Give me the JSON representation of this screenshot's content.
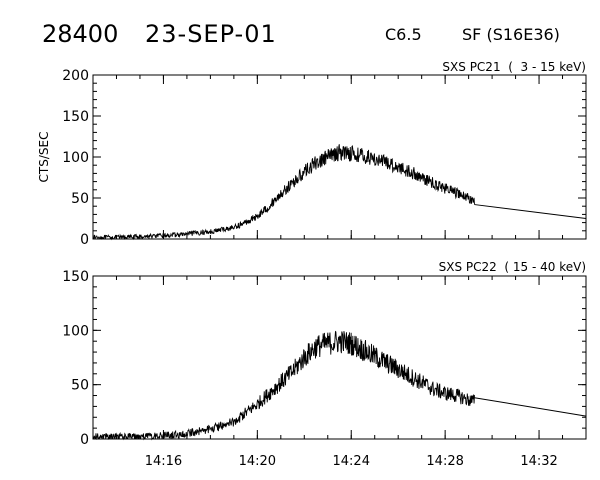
{
  "header": {
    "event_id": "28400",
    "date": "23-SEP-01",
    "flare_class": "C6.5",
    "flare_location": "SF (S16E36)"
  },
  "chart_data": [
    {
      "type": "line",
      "title": "SXS PC21  (  3 - 15 keV)",
      "ylabel": "CTS/SEC",
      "xlim": [
        "14:13",
        "14:34"
      ],
      "ylim": [
        0,
        200
      ],
      "y_ticks": [
        0,
        50,
        100,
        150,
        200
      ],
      "x_ticks": [
        "14:16",
        "14:20",
        "14:24",
        "14:28",
        "14:32"
      ],
      "x_tick_labels_shown": false,
      "x_minor_tick_minutes": 1,
      "grid": false,
      "series": [
        {
          "style": "noisy",
          "x": [
            "14:13:00",
            "14:14:00",
            "14:15:00",
            "14:16:00",
            "14:17:00",
            "14:18:00",
            "14:19:00",
            "14:19:30",
            "14:20:00",
            "14:20:30",
            "14:21:00",
            "14:21:30",
            "14:22:00",
            "14:22:30",
            "14:23:00",
            "14:23:30",
            "14:24:00",
            "14:24:30",
            "14:25:00",
            "14:25:30",
            "14:26:00",
            "14:26:30",
            "14:27:00",
            "14:27:30",
            "14:28:00",
            "14:28:30",
            "14:29:00",
            "14:29:15"
          ],
          "y": [
            2,
            2,
            3,
            4,
            6,
            9,
            14,
            20,
            28,
            40,
            55,
            68,
            82,
            93,
            100,
            106,
            105,
            101,
            98,
            93,
            88,
            82,
            75,
            68,
            62,
            56,
            50,
            46
          ],
          "noise": 7
        },
        {
          "style": "smooth",
          "x": [
            "14:29:15",
            "14:34:00"
          ],
          "y": [
            42,
            25
          ]
        }
      ]
    },
    {
      "type": "line",
      "title": "SXS PC22  ( 15 - 40 keV)",
      "ylabel": "",
      "xlim": [
        "14:13",
        "14:34"
      ],
      "ylim": [
        0,
        150
      ],
      "y_ticks": [
        0,
        50,
        100,
        150
      ],
      "x_ticks": [
        "14:16",
        "14:20",
        "14:24",
        "14:28",
        "14:32"
      ],
      "x_tick_labels_shown": true,
      "x_minor_tick_minutes": 1,
      "grid": false,
      "series": [
        {
          "style": "noisy",
          "x": [
            "14:13:00",
            "14:14:00",
            "14:15:00",
            "14:16:00",
            "14:17:00",
            "14:18:00",
            "14:19:00",
            "14:19:30",
            "14:20:00",
            "14:20:30",
            "14:21:00",
            "14:21:30",
            "14:22:00",
            "14:22:30",
            "14:23:00",
            "14:23:30",
            "14:24:00",
            "14:24:30",
            "14:25:00",
            "14:25:30",
            "14:26:00",
            "14:26:30",
            "14:27:00",
            "14:27:30",
            "14:28:00",
            "14:28:30",
            "14:29:00",
            "14:29:15"
          ],
          "y": [
            2,
            2,
            2,
            3,
            5,
            9,
            16,
            24,
            32,
            42,
            52,
            62,
            75,
            85,
            88,
            90,
            88,
            82,
            76,
            70,
            64,
            58,
            52,
            46,
            42,
            40,
            36,
            35
          ],
          "noise": 9
        },
        {
          "style": "smooth",
          "x": [
            "14:29:15",
            "14:34:00"
          ],
          "y": [
            38,
            21
          ]
        }
      ]
    }
  ]
}
